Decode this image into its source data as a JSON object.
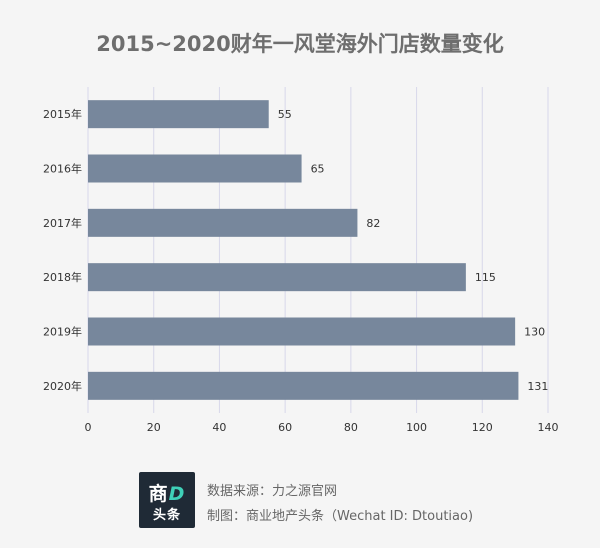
{
  "chart_data": {
    "type": "bar",
    "orientation": "horizontal",
    "title": "2015~2020财年一风堂海外门店数量变化",
    "categories": [
      "2015年",
      "2016年",
      "2017年",
      "2018年",
      "2019年",
      "2020年"
    ],
    "values": [
      55,
      65,
      82,
      115,
      130,
      131
    ],
    "xlim": [
      0,
      140
    ],
    "xticks": [
      0,
      20,
      40,
      60,
      80,
      100,
      120,
      140
    ],
    "grid": "vertical",
    "bar_color": "#77879c",
    "grid_color": "#d8d8ea"
  },
  "footer": {
    "source": "数据来源：力之源官网",
    "credit": "制图：商业地产头条（Wechat ID: Dtoutiao)",
    "logo_top_a": "商",
    "logo_top_b": "D",
    "logo_bottom": "头条"
  }
}
